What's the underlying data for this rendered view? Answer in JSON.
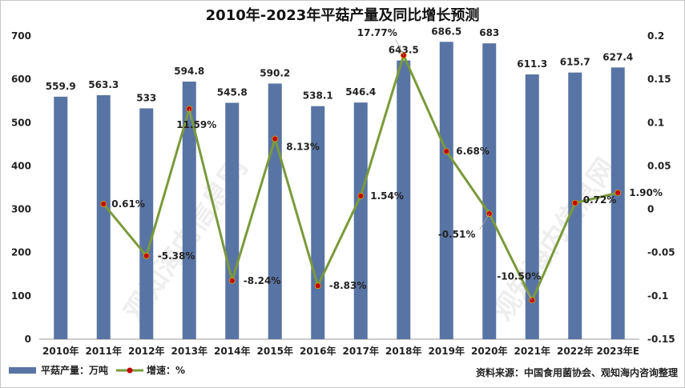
{
  "chart_data": {
    "type": "bar+line",
    "title": "2010年-2023年平菇产量及同比增长预测",
    "categories": [
      "2010年",
      "2011年",
      "2012年",
      "2013年",
      "2014年",
      "2015年",
      "2016年",
      "2017年",
      "2018年",
      "2019年",
      "2020年",
      "2021年",
      "2022年",
      "2023年E"
    ],
    "series": [
      {
        "name": "平菇产量：万吨",
        "type": "bar",
        "axis": "left",
        "values": [
          559.9,
          563.3,
          533,
          594.8,
          545.8,
          590.2,
          538.1,
          546.4,
          643.5,
          686.5,
          683,
          611.3,
          615.7,
          627.4
        ],
        "labels": [
          "559.9",
          "563.3",
          "533",
          "594.8",
          "545.8",
          "590.2",
          "538.1",
          "546.4",
          "643.5",
          "686.5",
          "683",
          "611.3",
          "615.7",
          "627.4"
        ]
      },
      {
        "name": "增速：%",
        "type": "line",
        "axis": "right",
        "values": [
          null,
          0.0061,
          -0.0538,
          0.1159,
          -0.0824,
          0.0813,
          -0.0883,
          0.0154,
          0.1777,
          0.0668,
          -0.0051,
          -0.105,
          0.0072,
          0.019
        ],
        "labels": [
          "",
          "0.61%",
          "-5.38%",
          "11.59%",
          "-8.24%",
          "8.13%",
          "-8.83%",
          "1.54%",
          "17.77%",
          "6.68%",
          "-0.51%",
          "-10.50%",
          "0.72%",
          "1.90%"
        ]
      }
    ],
    "left_axis": {
      "ylim": [
        0,
        700
      ],
      "ticks": [
        "0",
        "100",
        "200",
        "300",
        "400",
        "500",
        "600",
        "700"
      ]
    },
    "right_axis": {
      "ylim": [
        -0.15,
        0.2
      ],
      "ticks": [
        "-0.15",
        "-0.1",
        "-0.05",
        "0",
        "0.05",
        "0.1",
        "0.15",
        "0.2"
      ]
    },
    "grid": false,
    "legend_position": "bottom-left",
    "colors": {
      "bar": "#5874a4",
      "line": "#7a9a3a",
      "marker": "#c00000"
    }
  },
  "source": "资料来源：中国食用菌协会、观知海内咨询整理",
  "watermark": "观知海内信息网"
}
